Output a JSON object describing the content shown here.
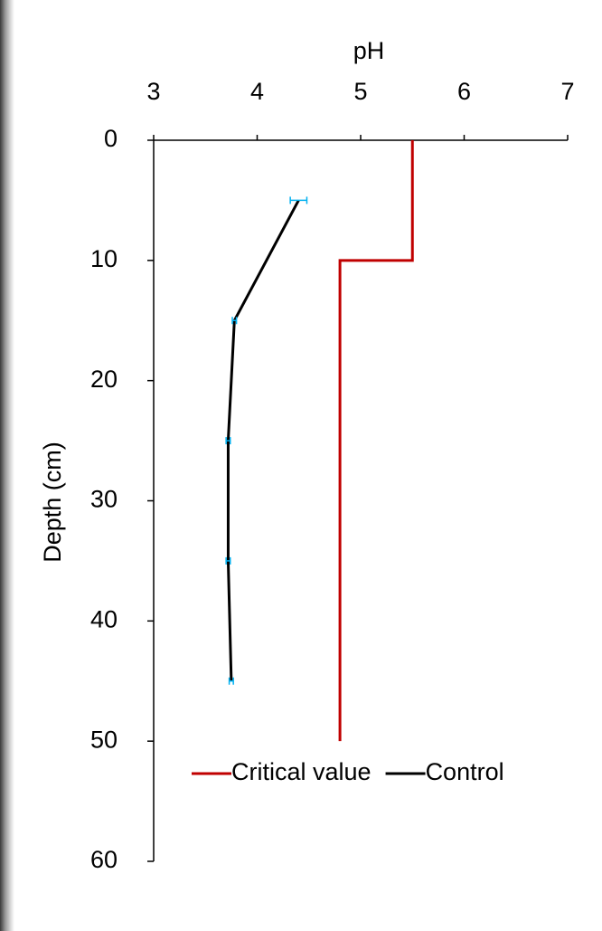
{
  "chart_data": {
    "type": "line",
    "x_label": "pH",
    "y_label": "Depth (cm)",
    "xlim": [
      3,
      7
    ],
    "xticks": [
      3,
      4,
      5,
      6,
      7
    ],
    "ylim": [
      0,
      60
    ],
    "yticks": [
      0,
      10,
      20,
      30,
      40,
      50,
      60
    ],
    "y_inverted": true,
    "legend": "bottom",
    "series": [
      {
        "name": "Critical value",
        "color": "#c00000",
        "x": [
          5.5,
          5.5,
          4.8,
          4.8
        ],
        "y": [
          0,
          10,
          10,
          50
        ]
      },
      {
        "name": "Control",
        "color": "#000000",
        "x": [
          4.4,
          3.78,
          3.72,
          3.72,
          3.75
        ],
        "y": [
          5,
          15,
          25,
          35,
          45
        ],
        "errors": [
          0.08,
          0.02,
          0.02,
          0.02,
          0.02
        ],
        "error_color": "#00b0f0"
      }
    ]
  }
}
